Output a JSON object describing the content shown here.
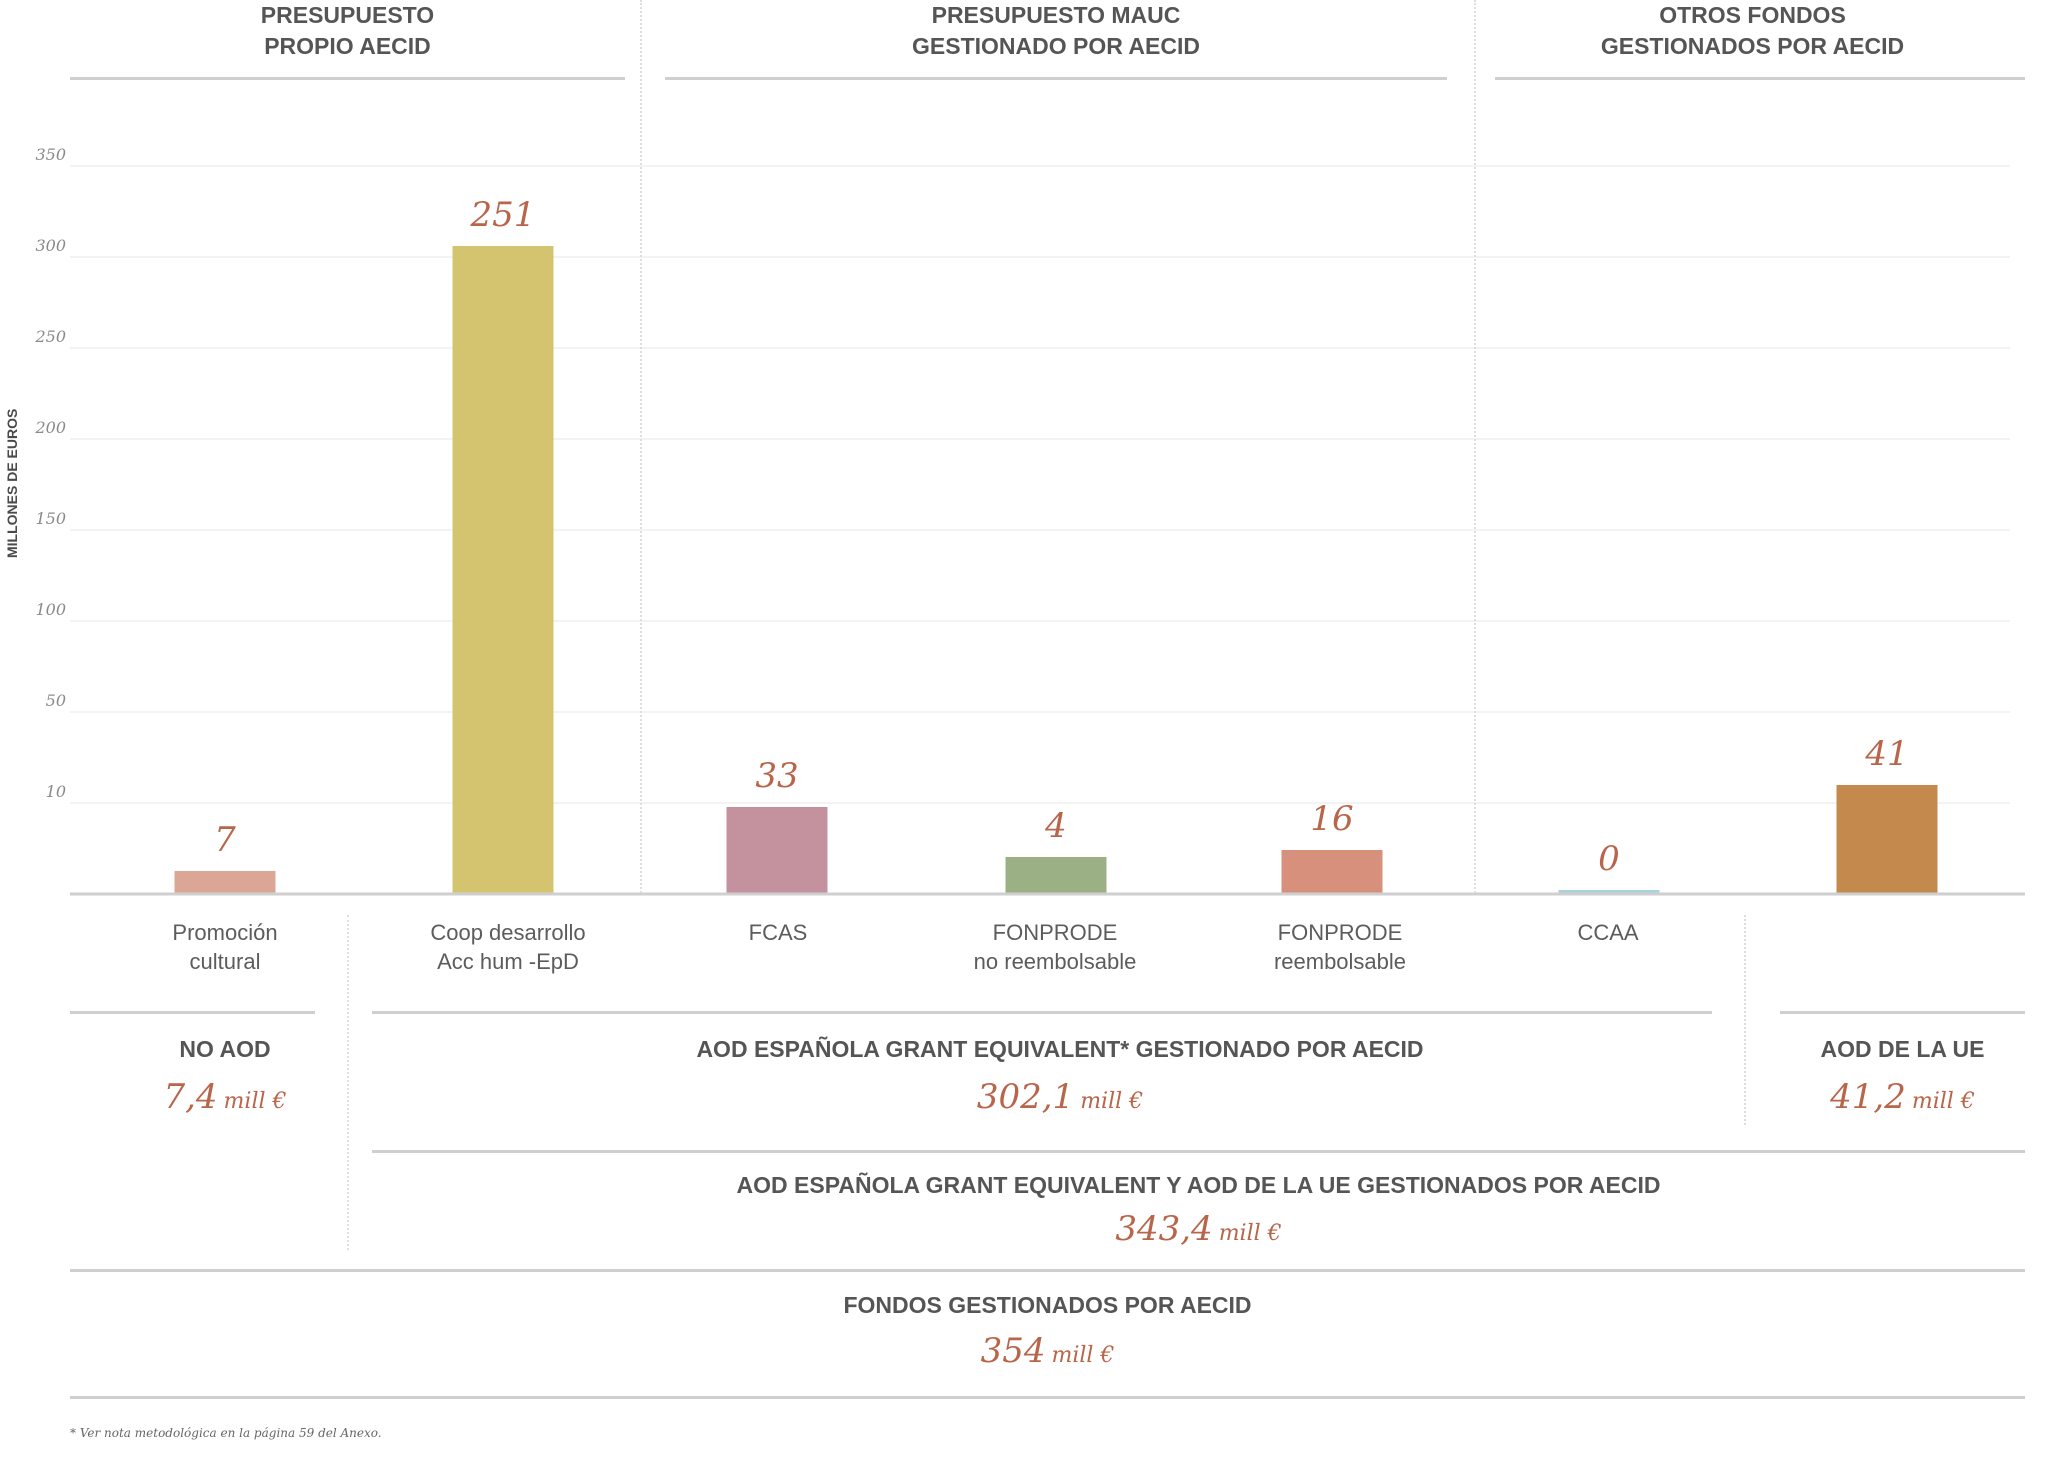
{
  "groups": [
    {
      "line1": "PRESUPUESTO",
      "line2": "PROPIO AECID"
    },
    {
      "line1": "PRESUPUESTO MAUC",
      "line2": "GESTIONADO POR AECID"
    },
    {
      "line1": "OTROS FONDOS",
      "line2": "GESTIONADOS POR AECID"
    }
  ],
  "chart_data": {
    "type": "bar",
    "ylabel": "MILLONES DE EUROS",
    "y_ticks": [
      "350",
      "300",
      "250",
      "200",
      "150",
      "100",
      "50",
      "10"
    ],
    "axis_note": "broken axis: 0–10 region then 50–350",
    "categories": [
      {
        "line1": "Promoción",
        "line2": "cultural"
      },
      {
        "line1": "Coop desarrollo",
        "line2": "Acc hum -EpD"
      },
      {
        "line1": "FCAS",
        "line2": ""
      },
      {
        "line1": "FONPRODE",
        "line2": "no reembolsable"
      },
      {
        "line1": "FONPRODE",
        "line2": "reembolsable"
      },
      {
        "line1": "CCAA",
        "line2": ""
      },
      {
        "line1": "",
        "line2": ""
      }
    ],
    "values": [
      7,
      251,
      33,
      4,
      16,
      0,
      41
    ],
    "value_labels": [
      "7",
      "251",
      "33",
      "4",
      "16",
      "0",
      "41"
    ],
    "colors": [
      "#dba695",
      "#d4c470",
      "#c4919f",
      "#9cb085",
      "#d6907c",
      "#a7d3dc",
      "#c4894d"
    ]
  },
  "summaries": {
    "no_aod": {
      "title": "NO AOD",
      "value": "7,4",
      "unit": "mill €"
    },
    "aod_grant": {
      "title": "AOD ESPAÑOLA GRANT EQUIVALENT* GESTIONADO POR AECID",
      "value": "302,1",
      "unit": "mill €"
    },
    "aod_ue": {
      "title": "AOD DE LA UE",
      "value": "41,2",
      "unit": "mill €"
    },
    "aod_grant_ue": {
      "title": "AOD ESPAÑOLA GRANT EQUIVALENT Y AOD DE LA UE GESTIONADOS POR AECID",
      "value": "343,4",
      "unit": "mill €"
    },
    "fondos": {
      "title": "FONDOS GESTIONADOS POR AECID",
      "value": "354",
      "unit": "mill €"
    }
  },
  "footnote": "* Ver nota metodológica en la página 59 del Anexo.",
  "colors": {
    "value_label": "#b8654a",
    "rule": "#cfcfcf",
    "grid": "#ececec"
  }
}
